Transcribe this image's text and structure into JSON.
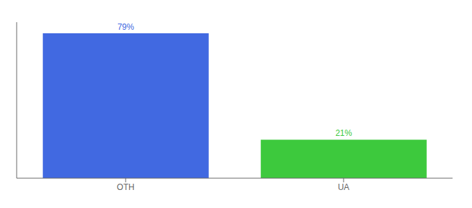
{
  "chart_data": {
    "type": "bar",
    "categories": [
      "OTH",
      "UA"
    ],
    "values": [
      79,
      21
    ],
    "value_labels": [
      "79%",
      "21%"
    ],
    "colors": [
      "#4169e1",
      "#3dc93d"
    ],
    "ylim": [
      0,
      85
    ],
    "data_labels": true,
    "tick_labels": "x"
  }
}
